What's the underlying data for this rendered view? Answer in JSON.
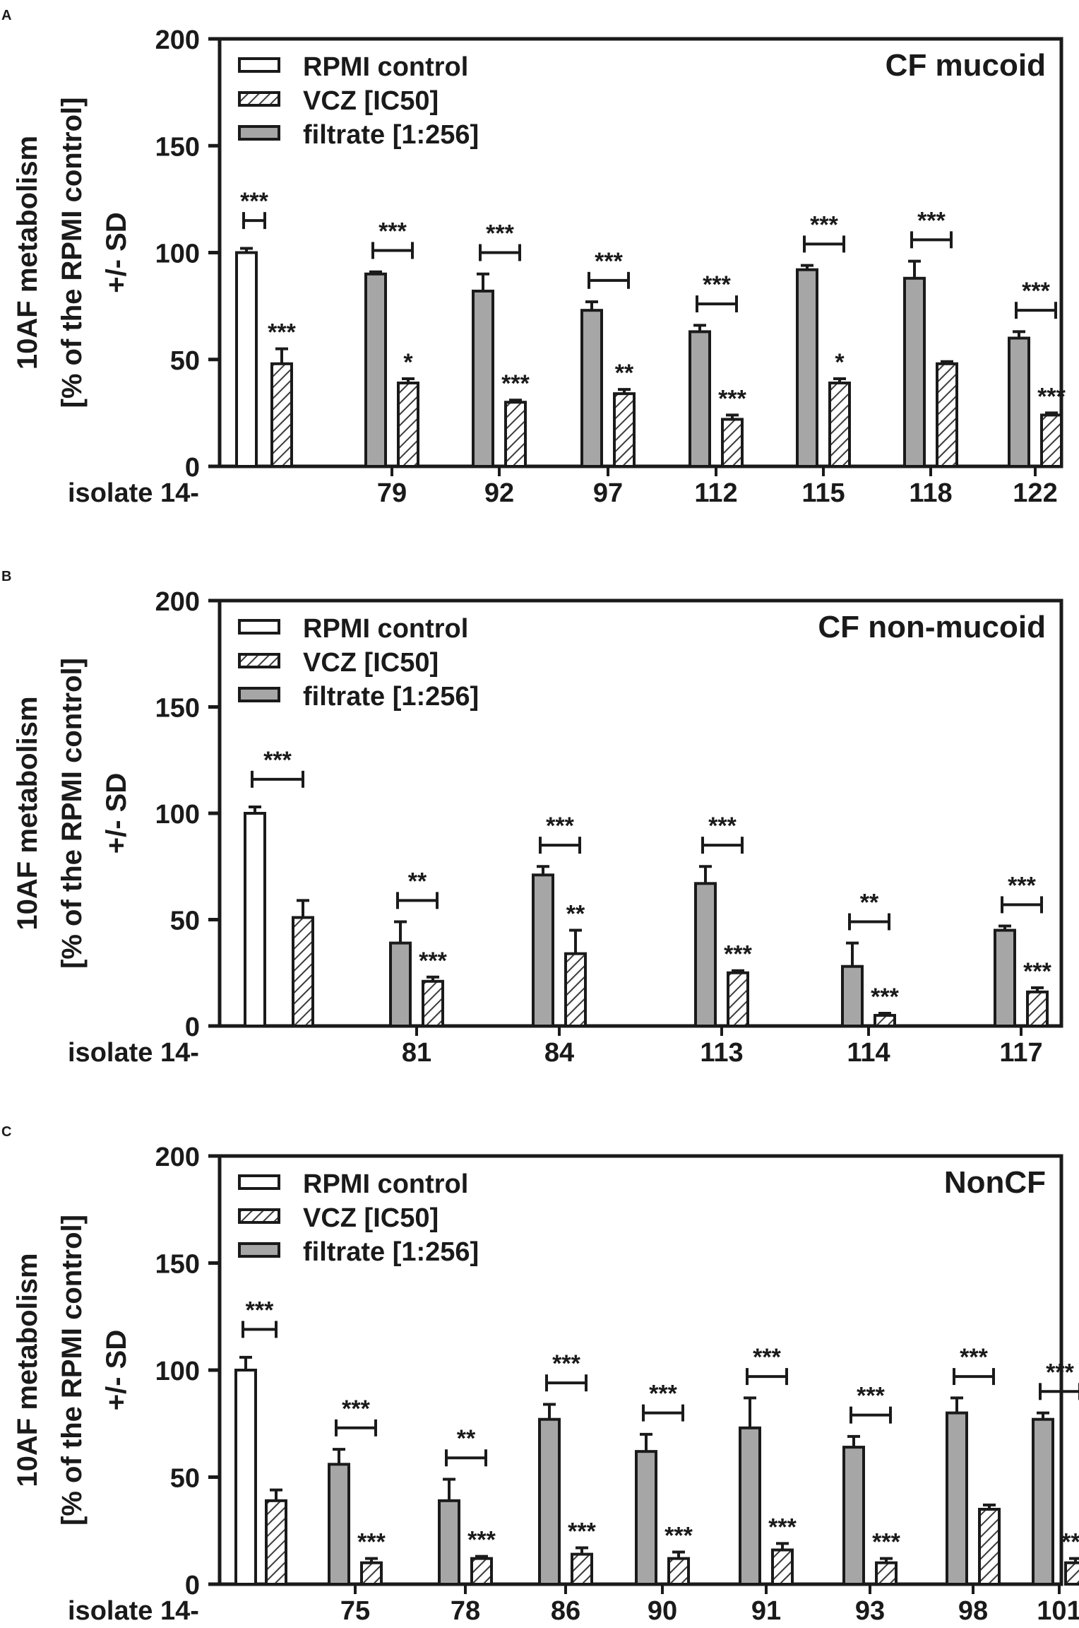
{
  "figure": {
    "ylabel_line1": "10AF metabolism",
    "ylabel_line2": "[% of the RPMI control]",
    "ylabel_line3": "+/- SD",
    "isolate_prefix": "isolate 14-",
    "colors": {
      "control": "#ffffff",
      "vcz": "#ffffff",
      "filtrate": "#a6a6a6",
      "hatch": "#3a3a3a",
      "axis": "#1a1a1a"
    }
  },
  "legend": [
    "RPMI control",
    "VCZ [IC50]",
    "filtrate [1:256]"
  ],
  "chart_data": [
    {
      "panel": "A",
      "type": "bar",
      "title": "CF mucoid",
      "ylabel": "10AF metabolism [% of the RPMI control] +/- SD",
      "xlabel": "isolate 14-",
      "ylim": [
        0,
        200
      ],
      "yticks": [
        0,
        50,
        100,
        150,
        200
      ],
      "series_names": [
        "RPMI control",
        "VCZ [IC50]",
        "filtrate [1:256]"
      ],
      "control": {
        "value": 100,
        "err": 2
      },
      "vcz": {
        "value": 48,
        "err": 7,
        "sig": "***"
      },
      "control_vs_vcz_sig": "***",
      "isolates": [
        {
          "label": "79",
          "filtrate": 90,
          "filtrate_err": 1,
          "vcz": 39,
          "vcz_err": 2,
          "bracket_sig": "***",
          "vcz_sig": "*"
        },
        {
          "label": "92",
          "filtrate": 82,
          "filtrate_err": 8,
          "vcz": 30,
          "vcz_err": 1,
          "bracket_sig": "***",
          "vcz_sig": "***"
        },
        {
          "label": "97",
          "filtrate": 73,
          "filtrate_err": 4,
          "vcz": 34,
          "vcz_err": 2,
          "bracket_sig": "***",
          "vcz_sig": "**"
        },
        {
          "label": "112",
          "filtrate": 63,
          "filtrate_err": 3,
          "vcz": 22,
          "vcz_err": 2,
          "bracket_sig": "***",
          "vcz_sig": "***"
        },
        {
          "label": "115",
          "filtrate": 92,
          "filtrate_err": 2,
          "vcz": 39,
          "vcz_err": 2,
          "bracket_sig": "***",
          "vcz_sig": "*"
        },
        {
          "label": "118",
          "filtrate": 88,
          "filtrate_err": 8,
          "vcz": 48,
          "vcz_err": 1,
          "bracket_sig": "***",
          "vcz_sig": ""
        },
        {
          "label": "122",
          "filtrate": 60,
          "filtrate_err": 3,
          "vcz": 24,
          "vcz_err": 1,
          "bracket_sig": "***",
          "vcz_sig": "***"
        }
      ]
    },
    {
      "panel": "B",
      "type": "bar",
      "title": "CF non-mucoid",
      "ylabel": "10AF metabolism [% of the RPMI control] +/- SD",
      "xlabel": "isolate 14-",
      "ylim": [
        0,
        200
      ],
      "yticks": [
        0,
        50,
        100,
        150,
        200
      ],
      "series_names": [
        "RPMI control",
        "VCZ [IC50]",
        "filtrate [1:256]"
      ],
      "control": {
        "value": 100,
        "err": 3
      },
      "vcz": {
        "value": 51,
        "err": 8,
        "sig": ""
      },
      "control_vs_vcz_sig": "***",
      "isolates": [
        {
          "label": "81",
          "filtrate": 39,
          "filtrate_err": 10,
          "vcz": 21,
          "vcz_err": 2,
          "bracket_sig": "**",
          "vcz_sig": "***"
        },
        {
          "label": "84",
          "filtrate": 71,
          "filtrate_err": 4,
          "vcz": 34,
          "vcz_err": 11,
          "bracket_sig": "***",
          "vcz_sig": "**"
        },
        {
          "label": "113",
          "filtrate": 67,
          "filtrate_err": 8,
          "vcz": 25,
          "vcz_err": 1,
          "bracket_sig": "***",
          "vcz_sig": "***"
        },
        {
          "label": "114",
          "filtrate": 28,
          "filtrate_err": 11,
          "vcz": 5,
          "vcz_err": 1,
          "bracket_sig": "**",
          "vcz_sig": "***"
        },
        {
          "label": "117",
          "filtrate": 45,
          "filtrate_err": 2,
          "vcz": 16,
          "vcz_err": 2,
          "bracket_sig": "***",
          "vcz_sig": "***"
        }
      ]
    },
    {
      "panel": "C",
      "type": "bar",
      "title": "NonCF",
      "ylabel": "10AF metabolism [% of the RPMI control] +/- SD",
      "xlabel": "isolate 14-",
      "ylim": [
        0,
        200
      ],
      "yticks": [
        0,
        50,
        100,
        150,
        200
      ],
      "series_names": [
        "RPMI control",
        "VCZ [IC50]",
        "filtrate [1:256]"
      ],
      "control": {
        "value": 100,
        "err": 6
      },
      "vcz": {
        "value": 39,
        "err": 5,
        "sig": ""
      },
      "control_vs_vcz_sig": "***",
      "isolates": [
        {
          "label": "75",
          "filtrate": 56,
          "filtrate_err": 7,
          "vcz": 10,
          "vcz_err": 2,
          "bracket_sig": "***",
          "vcz_sig": "***"
        },
        {
          "label": "78",
          "filtrate": 39,
          "filtrate_err": 10,
          "vcz": 12,
          "vcz_err": 1,
          "bracket_sig": "**",
          "vcz_sig": "***"
        },
        {
          "label": "86",
          "filtrate": 77,
          "filtrate_err": 7,
          "vcz": 14,
          "vcz_err": 3,
          "bracket_sig": "***",
          "vcz_sig": "***"
        },
        {
          "label": "90",
          "filtrate": 62,
          "filtrate_err": 8,
          "vcz": 12,
          "vcz_err": 3,
          "bracket_sig": "***",
          "vcz_sig": "***"
        },
        {
          "label": "91",
          "filtrate": 73,
          "filtrate_err": 14,
          "vcz": 16,
          "vcz_err": 3,
          "bracket_sig": "***",
          "vcz_sig": "***"
        },
        {
          "label": "93",
          "filtrate": 64,
          "filtrate_err": 5,
          "vcz": 10,
          "vcz_err": 2,
          "bracket_sig": "***",
          "vcz_sig": "***"
        },
        {
          "label": "98",
          "filtrate": 80,
          "filtrate_err": 7,
          "vcz": 35,
          "vcz_err": 2,
          "bracket_sig": "***",
          "vcz_sig": ""
        },
        {
          "label": "101",
          "filtrate": 77,
          "filtrate_err": 3,
          "vcz": 10,
          "vcz_err": 2,
          "bracket_sig": "***",
          "vcz_sig": "***"
        }
      ]
    }
  ]
}
